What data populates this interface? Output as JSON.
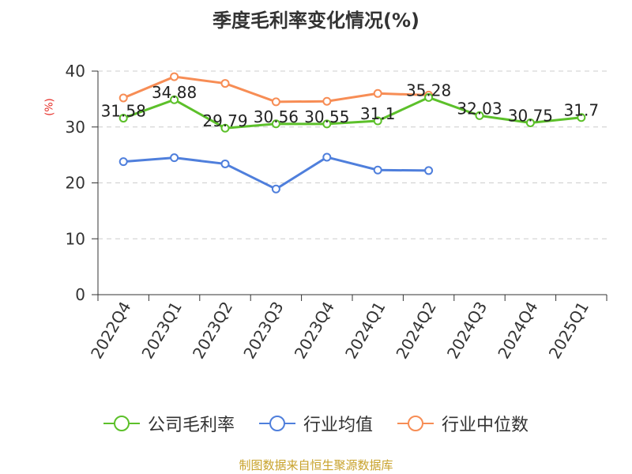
{
  "chart_data": {
    "type": "line",
    "title": "季度毛利率变化情况(%)",
    "ylabel": "(%)",
    "categories": [
      "2022Q4",
      "2023Q1",
      "2023Q2",
      "2023Q3",
      "2023Q4",
      "2024Q1",
      "2024Q2",
      "2024Q3",
      "2024Q4",
      "2025Q1"
    ],
    "ylim": [
      0,
      40
    ],
    "yticks": [
      0,
      10,
      20,
      30,
      40
    ],
    "grid": true,
    "legend_position": "bottom",
    "series": [
      {
        "name": "公司毛利率",
        "color": "#5cc02a",
        "values": [
          31.58,
          34.88,
          29.79,
          30.56,
          30.55,
          31.1,
          35.28,
          32.03,
          30.75,
          31.7
        ],
        "labels": [
          "31.58",
          "34.88",
          "29.79",
          "30.56",
          "30.55",
          "31.1",
          "35.28",
          "32.03",
          "30.75",
          "31.7"
        ]
      },
      {
        "name": "行业均值",
        "color": "#4f7fdc",
        "values": [
          23.8,
          24.5,
          23.4,
          18.9,
          24.6,
          22.3,
          22.2,
          null,
          null,
          null
        ]
      },
      {
        "name": "行业中位数",
        "color": "#f78d55",
        "values": [
          35.2,
          39.0,
          37.8,
          34.5,
          34.6,
          36.0,
          35.7,
          null,
          null,
          null
        ]
      }
    ]
  },
  "source": "制图数据来自恒生聚源数据库"
}
